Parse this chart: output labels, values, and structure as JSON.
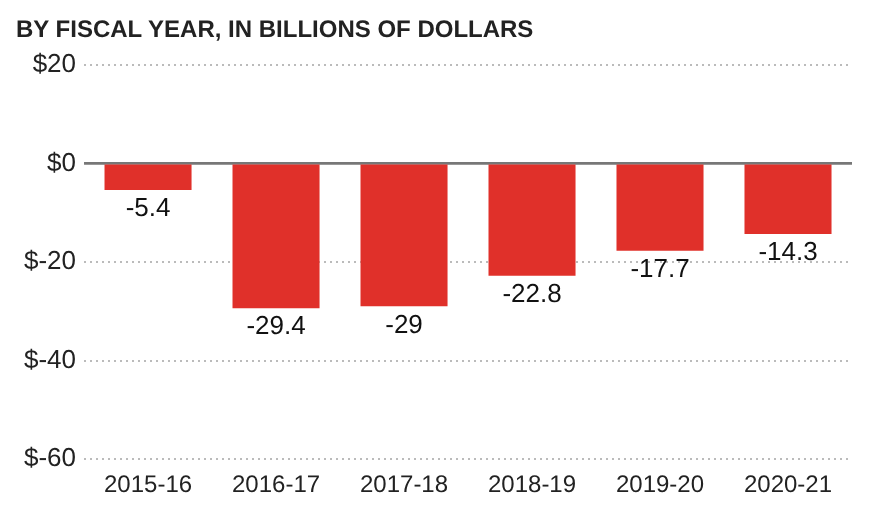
{
  "chart_data": {
    "type": "bar",
    "title": "BY FISCAL YEAR, IN BILLIONS OF DOLLARS",
    "categories": [
      "2015-16",
      "2016-17",
      "2017-18",
      "2018-19",
      "2019-20",
      "2020-21"
    ],
    "values": [
      -5.4,
      -29.4,
      -29,
      -22.8,
      -17.7,
      -14.3
    ],
    "color": "#e0302a",
    "ylim": [
      -60,
      20
    ],
    "yticks": [
      {
        "value": 20,
        "label": "$20"
      },
      {
        "value": 0,
        "label": "$0"
      },
      {
        "value": -20,
        "label": "$-20"
      },
      {
        "value": -40,
        "label": "$-40"
      },
      {
        "value": -60,
        "label": "$-60"
      }
    ],
    "ref_lines": [
      {
        "axis": "y",
        "value": 0,
        "color": "#777777"
      }
    ],
    "grid": "y",
    "data_labels": true,
    "legend": false
  }
}
